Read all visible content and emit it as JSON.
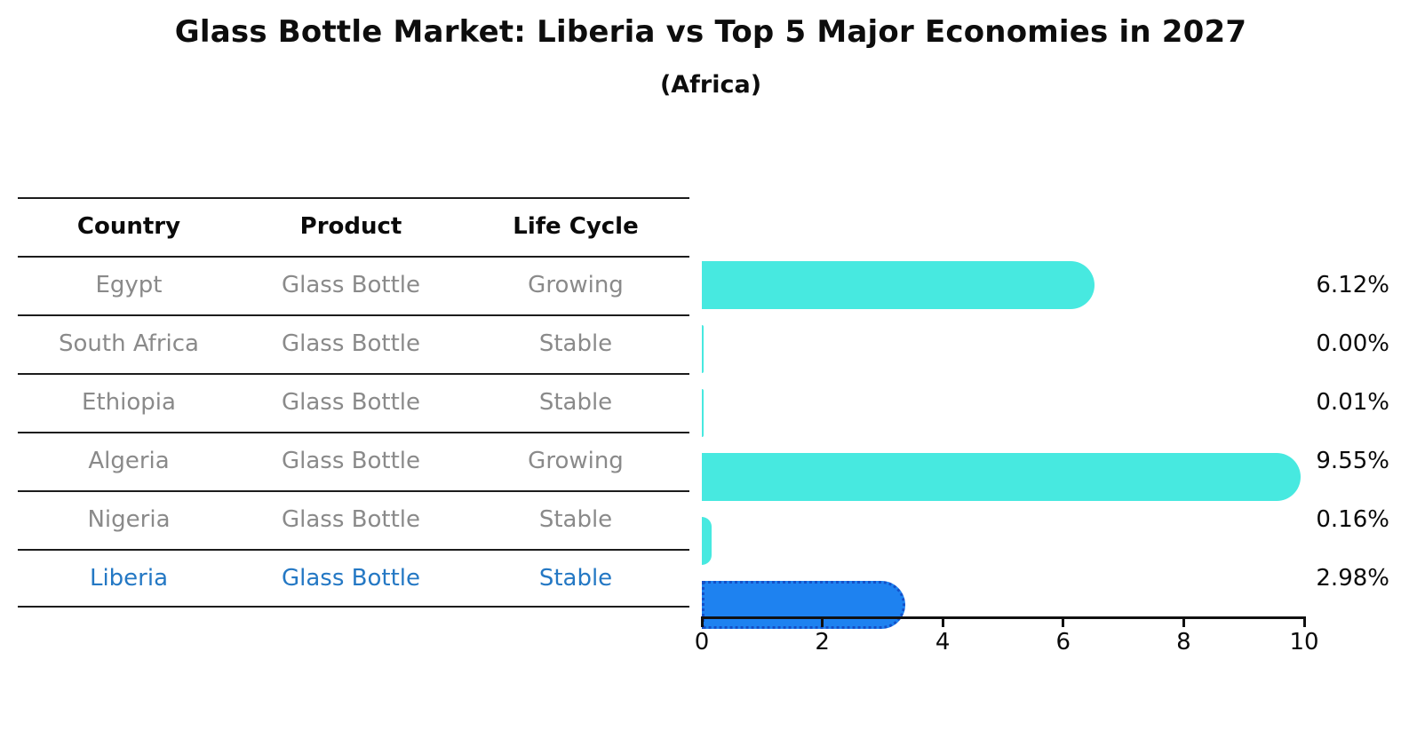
{
  "title": "Glass Bottle Market: Liberia vs Top 5 Major Economies in 2027",
  "subtitle": "(Africa)",
  "table": {
    "headers": [
      "Country",
      "Product",
      "Life Cycle"
    ],
    "rows": [
      {
        "country": "Egypt",
        "product": "Glass Bottle",
        "life_cycle": "Growing"
      },
      {
        "country": "South Africa",
        "product": "Glass Bottle",
        "life_cycle": "Stable"
      },
      {
        "country": "Ethiopia",
        "product": "Glass Bottle",
        "life_cycle": "Stable"
      },
      {
        "country": "Algeria",
        "product": "Glass Bottle",
        "life_cycle": "Growing"
      },
      {
        "country": "Nigeria",
        "product": "Glass Bottle",
        "life_cycle": "Stable"
      },
      {
        "country": "Liberia",
        "product": "Glass Bottle",
        "life_cycle": "Stable"
      }
    ]
  },
  "chart_data": {
    "type": "bar",
    "orientation": "horizontal",
    "title": "Glass Bottle Market: Liberia vs Top 5 Major Economies in 2027",
    "subtitle": "(Africa)",
    "categories": [
      "Egypt",
      "South Africa",
      "Ethiopia",
      "Algeria",
      "Nigeria",
      "Liberia"
    ],
    "values": [
      6.12,
      0.0,
      0.01,
      9.55,
      0.16,
      2.98
    ],
    "value_labels": [
      "6.12%",
      "0.00%",
      "0.01%",
      "9.55%",
      "0.16%",
      "2.98%"
    ],
    "xlim": [
      0,
      10
    ],
    "x_ticks": [
      0,
      2,
      4,
      6,
      8,
      10
    ],
    "grid": "off",
    "highlight_index": 5,
    "bar_color": "#47e9e0",
    "highlight_bar_color": "#1e82f0",
    "highlight_border_color": "#1450c8",
    "highlight_text_color": "#2478c4",
    "row_text_color": "#8a8a8a"
  }
}
